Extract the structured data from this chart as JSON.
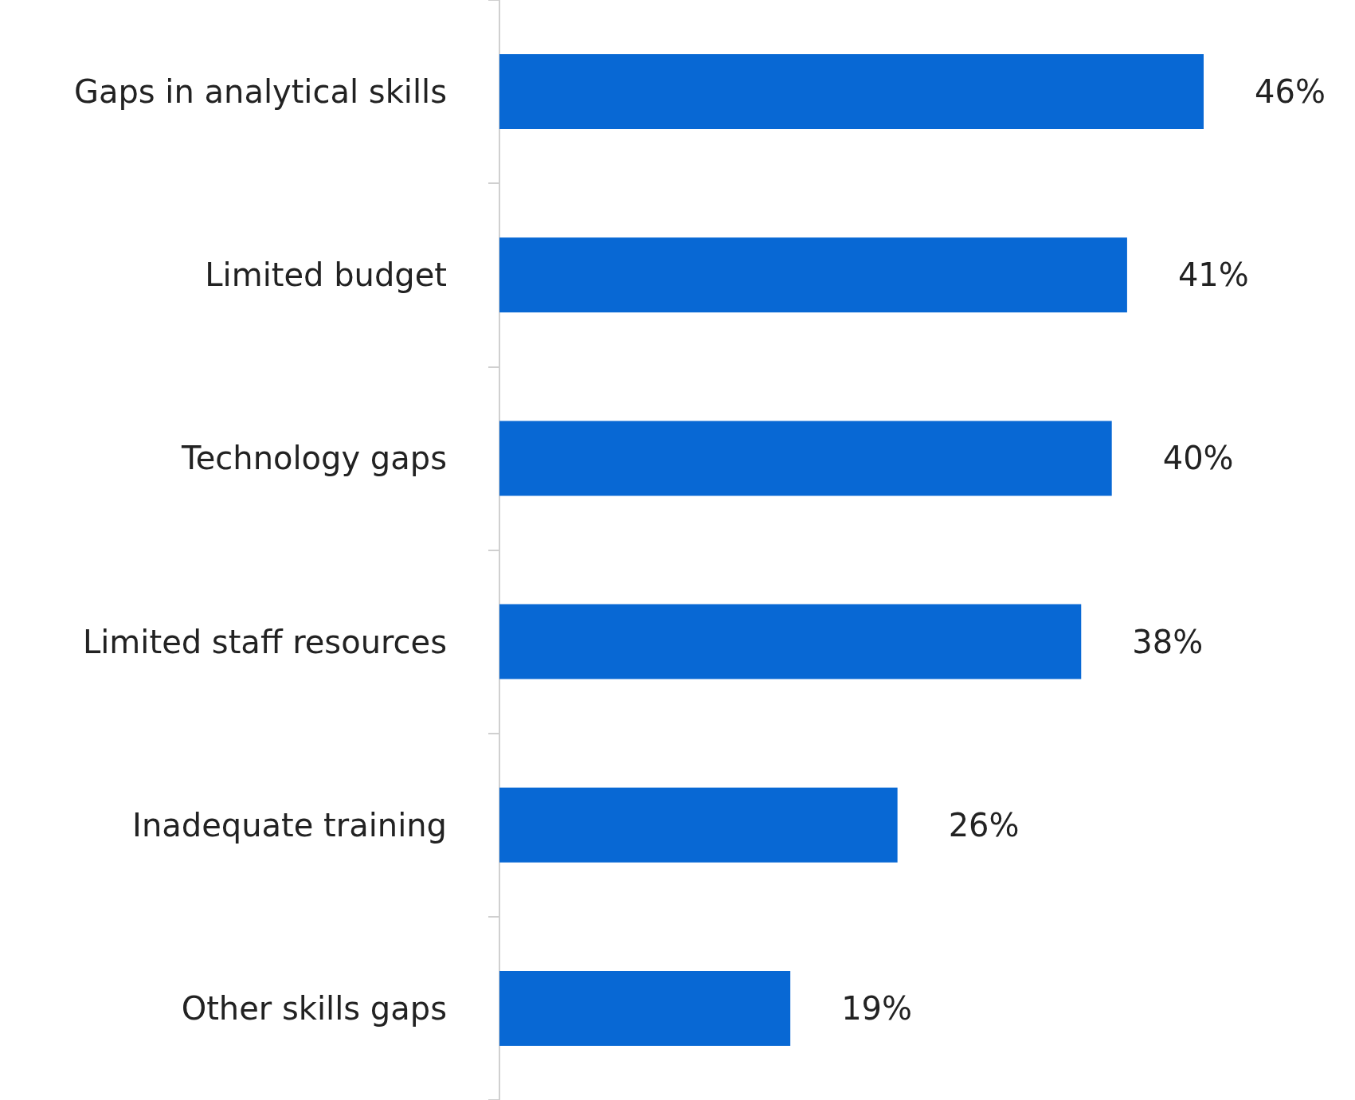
{
  "chart_data": {
    "type": "bar",
    "orientation": "horizontal",
    "categories": [
      "Gaps in analytical skills",
      "Limited budget",
      "Technology gaps",
      "Limited staff resources",
      "Inadequate training",
      "Other skills gaps"
    ],
    "values": [
      46,
      41,
      40,
      38,
      26,
      19
    ],
    "value_labels": [
      "46%",
      "41%",
      "40%",
      "38%",
      "26%",
      "19%"
    ],
    "color": "#0868d4"
  }
}
